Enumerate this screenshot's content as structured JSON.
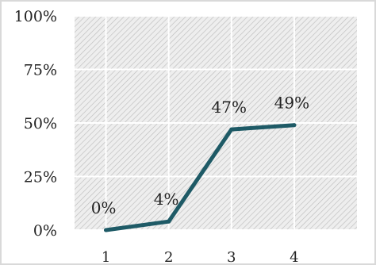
{
  "chart_data": {
    "type": "line",
    "title": "",
    "xlabel": "",
    "ylabel": "",
    "categories": [
      "1",
      "2",
      "3",
      "4"
    ],
    "series": [
      {
        "values": [
          0,
          4,
          47,
          49
        ]
      }
    ],
    "data_labels": [
      "0%",
      "4%",
      "47%",
      "49%"
    ],
    "ylim": [
      0,
      100
    ],
    "y_ticks": [
      0,
      25,
      50,
      75,
      100
    ],
    "y_tick_labels": [
      "0%",
      "25%",
      "50%",
      "75%",
      "100%"
    ],
    "grid": true,
    "plot_pattern": "diagonal-hatch",
    "line_color": "#1e5a66",
    "frame_color": "#d9d9d9",
    "grid_color": "#ffffff"
  }
}
